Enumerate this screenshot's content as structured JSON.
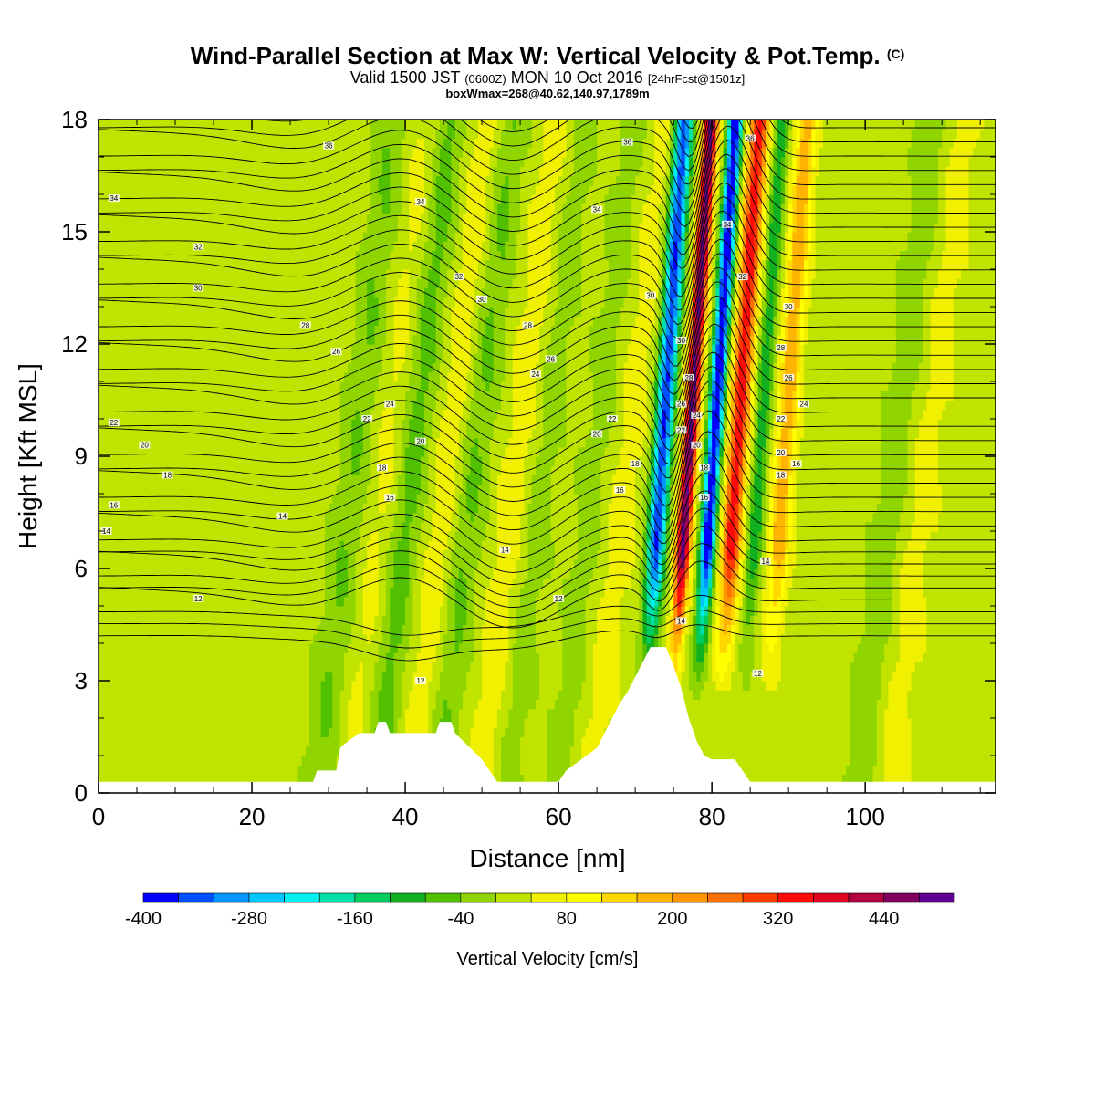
{
  "header": {
    "title": "Wind-Parallel Section at Max W: Vertical Velocity & Pot.Temp.",
    "copyright": "(C)",
    "valid_prefix": "Valid 1500 JST",
    "valid_utc": "(0600Z)",
    "valid_date": "MON 10 Oct 2016",
    "forecast": "[24hrFcst@1501z]",
    "box_info": "boxWmax=268@40.62,140.97,1789m"
  },
  "chart_data": {
    "type": "heatmap",
    "xlabel": "Distance [nm]",
    "ylabel": "Height [Kft MSL]",
    "xlim": [
      0,
      117
    ],
    "ylim": [
      0,
      18
    ],
    "x_ticks": [
      0,
      20,
      40,
      60,
      80,
      100
    ],
    "y_ticks": [
      0,
      3,
      6,
      9,
      12,
      15,
      18
    ],
    "colorbar": {
      "title": "Vertical Velocity [cm/s]",
      "levels": [
        -400,
        -360,
        -320,
        -280,
        -240,
        -200,
        -160,
        -120,
        -80,
        -40,
        0,
        40,
        80,
        120,
        160,
        200,
        240,
        280,
        320,
        360,
        400,
        440,
        480
      ],
      "labels": [
        "-400",
        "-280",
        "-160",
        "-40",
        "80",
        "200",
        "320",
        "440"
      ],
      "colors": [
        "#0000ff",
        "#0050ff",
        "#0096ff",
        "#00c8ff",
        "#00f0f0",
        "#00e0a8",
        "#00cc60",
        "#10b020",
        "#50c000",
        "#90d400",
        "#c0e400",
        "#f0f000",
        "#ffff00",
        "#ffd800",
        "#ffb400",
        "#ff9600",
        "#ff7000",
        "#ff3c00",
        "#ff0a0a",
        "#e00020",
        "#b00040",
        "#800060",
        "#600090"
      ]
    },
    "terrain_kft": [
      [
        0,
        0.3
      ],
      [
        28,
        0.3
      ],
      [
        28.5,
        0.6
      ],
      [
        31,
        0.6
      ],
      [
        31.5,
        1.2
      ],
      [
        32,
        1.3
      ],
      [
        34,
        1.6
      ],
      [
        36,
        1.6
      ],
      [
        36.5,
        1.9
      ],
      [
        37.5,
        1.9
      ],
      [
        38,
        1.6
      ],
      [
        44,
        1.6
      ],
      [
        44.5,
        1.9
      ],
      [
        46,
        1.9
      ],
      [
        46.5,
        1.6
      ],
      [
        48,
        1.3
      ],
      [
        50,
        0.9
      ],
      [
        51,
        0.6
      ],
      [
        52,
        0.3
      ],
      [
        60,
        0.3
      ],
      [
        61,
        0.6
      ],
      [
        63,
        0.9
      ],
      [
        65,
        1.2
      ],
      [
        66,
        1.6
      ],
      [
        67,
        2.0
      ],
      [
        68,
        2.4
      ],
      [
        69,
        2.7
      ],
      [
        70,
        3.1
      ],
      [
        71,
        3.5
      ],
      [
        72,
        3.9
      ],
      [
        74,
        3.9
      ],
      [
        75,
        3.4
      ],
      [
        76,
        2.8
      ],
      [
        77,
        2.0
      ],
      [
        78,
        1.4
      ],
      [
        79,
        1.0
      ],
      [
        80,
        0.9
      ],
      [
        83,
        0.9
      ],
      [
        84,
        0.6
      ],
      [
        85,
        0.3
      ],
      [
        117,
        0.3
      ]
    ],
    "contour_labels": [
      {
        "x": 30,
        "y": 17.3,
        "text": "36"
      },
      {
        "x": 2,
        "y": 15.9,
        "text": "34"
      },
      {
        "x": 13,
        "y": 14.6,
        "text": "32"
      },
      {
        "x": 13,
        "y": 13.5,
        "text": "30"
      },
      {
        "x": 27,
        "y": 12.5,
        "text": "28"
      },
      {
        "x": 31,
        "y": 11.8,
        "text": "26"
      },
      {
        "x": 2,
        "y": 9.9,
        "text": "22"
      },
      {
        "x": 6,
        "y": 9.3,
        "text": "20"
      },
      {
        "x": 9,
        "y": 8.5,
        "text": "18"
      },
      {
        "x": 2,
        "y": 7.7,
        "text": "16"
      },
      {
        "x": 1,
        "y": 7.0,
        "text": "14"
      },
      {
        "x": 24,
        "y": 7.4,
        "text": "14"
      },
      {
        "x": 13,
        "y": 5.2,
        "text": "12"
      },
      {
        "x": 42,
        "y": 3.0,
        "text": "12"
      },
      {
        "x": 42,
        "y": 15.8,
        "text": "34"
      },
      {
        "x": 47,
        "y": 13.8,
        "text": "32"
      },
      {
        "x": 50,
        "y": 13.2,
        "text": "30"
      },
      {
        "x": 56,
        "y": 12.5,
        "text": "28"
      },
      {
        "x": 59,
        "y": 11.6,
        "text": "26"
      },
      {
        "x": 57,
        "y": 11.2,
        "text": "24"
      },
      {
        "x": 38,
        "y": 10.4,
        "text": "24"
      },
      {
        "x": 35,
        "y": 10.0,
        "text": "22"
      },
      {
        "x": 42,
        "y": 9.4,
        "text": "20"
      },
      {
        "x": 37,
        "y": 8.7,
        "text": "18"
      },
      {
        "x": 38,
        "y": 7.9,
        "text": "16"
      },
      {
        "x": 53,
        "y": 6.5,
        "text": "14"
      },
      {
        "x": 60,
        "y": 5.2,
        "text": "12"
      },
      {
        "x": 69,
        "y": 17.4,
        "text": "36"
      },
      {
        "x": 65,
        "y": 15.6,
        "text": "34"
      },
      {
        "x": 67,
        "y": 10.0,
        "text": "22"
      },
      {
        "x": 65,
        "y": 9.6,
        "text": "20"
      },
      {
        "x": 70,
        "y": 8.8,
        "text": "18"
      },
      {
        "x": 68,
        "y": 8.1,
        "text": "16"
      },
      {
        "x": 72,
        "y": 13.3,
        "text": "30"
      },
      {
        "x": 76,
        "y": 12.1,
        "text": "30"
      },
      {
        "x": 77,
        "y": 11.1,
        "text": "28"
      },
      {
        "x": 76,
        "y": 10.4,
        "text": "26"
      },
      {
        "x": 78,
        "y": 10.1,
        "text": "24"
      },
      {
        "x": 76,
        "y": 9.7,
        "text": "22"
      },
      {
        "x": 78,
        "y": 9.3,
        "text": "20"
      },
      {
        "x": 79,
        "y": 8.7,
        "text": "18"
      },
      {
        "x": 79,
        "y": 7.9,
        "text": "16"
      },
      {
        "x": 76,
        "y": 4.6,
        "text": "14"
      },
      {
        "x": 85,
        "y": 17.5,
        "text": "36"
      },
      {
        "x": 82,
        "y": 15.2,
        "text": "34"
      },
      {
        "x": 84,
        "y": 13.8,
        "text": "32"
      },
      {
        "x": 90,
        "y": 13.0,
        "text": "30"
      },
      {
        "x": 89,
        "y": 11.9,
        "text": "28"
      },
      {
        "x": 90,
        "y": 11.1,
        "text": "26"
      },
      {
        "x": 92,
        "y": 10.4,
        "text": "24"
      },
      {
        "x": 89,
        "y": 10.0,
        "text": "22"
      },
      {
        "x": 89,
        "y": 9.1,
        "text": "20"
      },
      {
        "x": 89,
        "y": 8.5,
        "text": "18"
      },
      {
        "x": 91,
        "y": 8.8,
        "text": "16"
      },
      {
        "x": 87,
        "y": 6.2,
        "text": "14"
      },
      {
        "x": 86,
        "y": 3.2,
        "text": "12"
      }
    ]
  }
}
